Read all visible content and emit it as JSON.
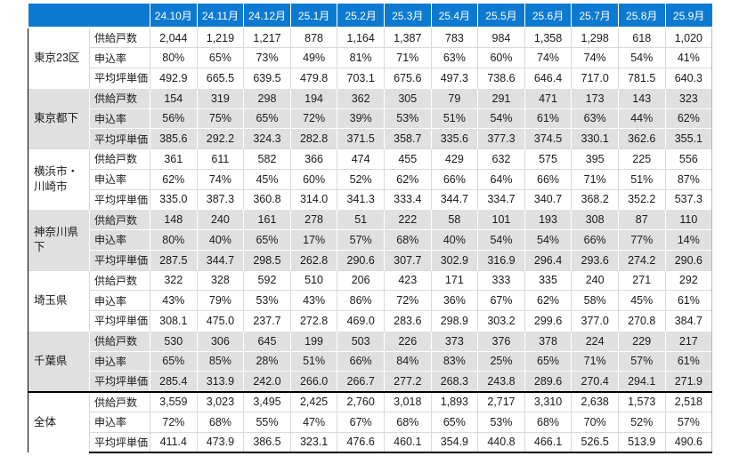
{
  "colors": {
    "header-bg": "#0d7ad2",
    "header-text": "#ffffff",
    "stripe-gray": "#e0e0e0",
    "grid-light": "#d9d9d9",
    "border-dark": "#000000"
  },
  "header": {
    "corner_label": ""
  },
  "chart_data": {
    "type": "table",
    "columns": [
      "24.10月",
      "24.11月",
      "24.12月",
      "25.1月",
      "25.2月",
      "25.3月",
      "25.4月",
      "25.5月",
      "25.6月",
      "25.7月",
      "25.8月",
      "25.9月"
    ],
    "metric_labels": [
      "供給戸数",
      "申込率",
      "平均坪単価"
    ],
    "row_groups": [
      {
        "region": "東京23区",
        "metrics": [
          {
            "label": "供給戸数",
            "values": [
              "2,044",
              "1,219",
              "1,217",
              "878",
              "1,164",
              "1,387",
              "783",
              "984",
              "1,358",
              "1,298",
              "618",
              "1,020"
            ]
          },
          {
            "label": "申込率",
            "values": [
              "80%",
              "65%",
              "73%",
              "49%",
              "81%",
              "71%",
              "63%",
              "60%",
              "74%",
              "74%",
              "54%",
              "41%"
            ]
          },
          {
            "label": "平均坪単価",
            "values": [
              "492.9",
              "665.5",
              "639.5",
              "479.8",
              "703.1",
              "675.6",
              "497.3",
              "738.6",
              "646.4",
              "717.0",
              "781.5",
              "640.3"
            ]
          }
        ]
      },
      {
        "region": "東京都下",
        "metrics": [
          {
            "label": "供給戸数",
            "values": [
              "154",
              "319",
              "298",
              "194",
              "362",
              "305",
              "79",
              "291",
              "471",
              "173",
              "143",
              "323"
            ]
          },
          {
            "label": "申込率",
            "values": [
              "56%",
              "75%",
              "65%",
              "72%",
              "39%",
              "53%",
              "51%",
              "54%",
              "61%",
              "63%",
              "44%",
              "62%"
            ]
          },
          {
            "label": "平均坪単価",
            "values": [
              "385.6",
              "292.2",
              "324.3",
              "282.8",
              "371.5",
              "358.7",
              "335.6",
              "377.3",
              "374.5",
              "330.1",
              "362.6",
              "355.1"
            ]
          }
        ]
      },
      {
        "region": "横浜市・\n川崎市",
        "metrics": [
          {
            "label": "供給戸数",
            "values": [
              "361",
              "611",
              "582",
              "366",
              "474",
              "455",
              "429",
              "632",
              "575",
              "395",
              "225",
              "556"
            ]
          },
          {
            "label": "申込率",
            "values": [
              "62%",
              "74%",
              "45%",
              "60%",
              "52%",
              "62%",
              "66%",
              "64%",
              "66%",
              "71%",
              "51%",
              "87%"
            ]
          },
          {
            "label": "平均坪単価",
            "values": [
              "335.0",
              "387.3",
              "360.8",
              "314.0",
              "341.3",
              "333.4",
              "344.7",
              "334.7",
              "340.7",
              "368.2",
              "352.2",
              "537.3"
            ]
          }
        ]
      },
      {
        "region": "神奈川県下",
        "metrics": [
          {
            "label": "供給戸数",
            "values": [
              "148",
              "240",
              "161",
              "278",
              "51",
              "222",
              "58",
              "101",
              "193",
              "308",
              "87",
              "110"
            ]
          },
          {
            "label": "申込率",
            "values": [
              "80%",
              "40%",
              "65%",
              "17%",
              "57%",
              "68%",
              "40%",
              "54%",
              "54%",
              "66%",
              "77%",
              "14%"
            ]
          },
          {
            "label": "平均坪単価",
            "values": [
              "287.5",
              "344.7",
              "298.5",
              "262.8",
              "290.6",
              "307.7",
              "302.9",
              "316.9",
              "296.4",
              "293.6",
              "274.2",
              "290.6"
            ]
          }
        ]
      },
      {
        "region": "埼玉県",
        "metrics": [
          {
            "label": "供給戸数",
            "values": [
              "322",
              "328",
              "592",
              "510",
              "206",
              "423",
              "171",
              "333",
              "335",
              "240",
              "271",
              "292"
            ]
          },
          {
            "label": "申込率",
            "values": [
              "43%",
              "79%",
              "53%",
              "43%",
              "86%",
              "72%",
              "36%",
              "67%",
              "62%",
              "58%",
              "45%",
              "61%"
            ]
          },
          {
            "label": "平均坪単価",
            "values": [
              "308.1",
              "475.0",
              "237.7",
              "272.8",
              "469.0",
              "283.6",
              "298.9",
              "303.2",
              "299.6",
              "377.0",
              "270.8",
              "384.7"
            ]
          }
        ]
      },
      {
        "region": "千葉県",
        "metrics": [
          {
            "label": "供給戸数",
            "values": [
              "530",
              "306",
              "645",
              "199",
              "503",
              "226",
              "373",
              "376",
              "378",
              "224",
              "229",
              "217"
            ]
          },
          {
            "label": "申込率",
            "values": [
              "65%",
              "85%",
              "28%",
              "51%",
              "66%",
              "84%",
              "83%",
              "25%",
              "65%",
              "71%",
              "57%",
              "61%"
            ]
          },
          {
            "label": "平均坪単価",
            "values": [
              "285.4",
              "313.9",
              "242.0",
              "266.0",
              "266.7",
              "277.2",
              "268.3",
              "243.8",
              "289.6",
              "270.4",
              "294.1",
              "271.9"
            ]
          }
        ]
      },
      {
        "region": "全体",
        "metrics": [
          {
            "label": "供給戸数",
            "values": [
              "3,559",
              "3,023",
              "3,495",
              "2,425",
              "2,760",
              "3,018",
              "1,893",
              "2,717",
              "3,310",
              "2,638",
              "1,573",
              "2,518"
            ]
          },
          {
            "label": "申込率",
            "values": [
              "72%",
              "68%",
              "55%",
              "47%",
              "67%",
              "68%",
              "65%",
              "53%",
              "68%",
              "70%",
              "52%",
              "57%"
            ]
          },
          {
            "label": "平均坪単価",
            "values": [
              "411.4",
              "473.9",
              "386.5",
              "323.1",
              "476.6",
              "460.1",
              "354.9",
              "440.8",
              "466.1",
              "526.5",
              "513.9",
              "490.6"
            ]
          }
        ]
      }
    ]
  }
}
